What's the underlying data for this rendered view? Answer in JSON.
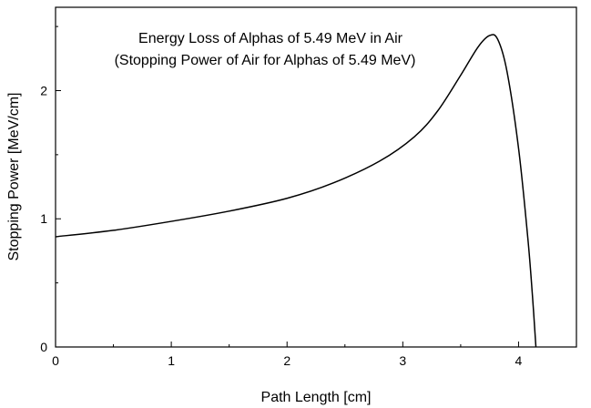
{
  "chart_data": {
    "type": "line",
    "title": "Energy Loss of Alphas of 5.49 MeV in Air",
    "subtitle": "(Stopping Power of Air for Alphas of 5.49 MeV)",
    "xlabel": "Path Length [cm]",
    "ylabel": "Stopping Power [MeV/cm]",
    "xlim": [
      0,
      4.5
    ],
    "ylim": [
      0,
      2.65
    ],
    "x_ticks": [
      0,
      1,
      2,
      3,
      4
    ],
    "y_ticks": [
      0,
      1,
      2
    ],
    "x_tick_labels": [
      "0",
      "1",
      "2",
      "3",
      "4"
    ],
    "y_tick_labels": [
      "0",
      "1",
      "2"
    ],
    "series": [
      {
        "name": "Stopping Power",
        "color": "#000000",
        "x": [
          0,
          0.5,
          1.0,
          1.5,
          2.0,
          2.4,
          2.8,
          3.1,
          3.3,
          3.5,
          3.65,
          3.75,
          3.82,
          3.9,
          4.0,
          4.08,
          4.12,
          4.15
        ],
        "y": [
          0.86,
          0.91,
          0.98,
          1.06,
          1.16,
          1.28,
          1.45,
          1.64,
          1.84,
          2.12,
          2.34,
          2.43,
          2.4,
          2.15,
          1.55,
          0.85,
          0.4,
          0.0
        ]
      }
    ]
  }
}
